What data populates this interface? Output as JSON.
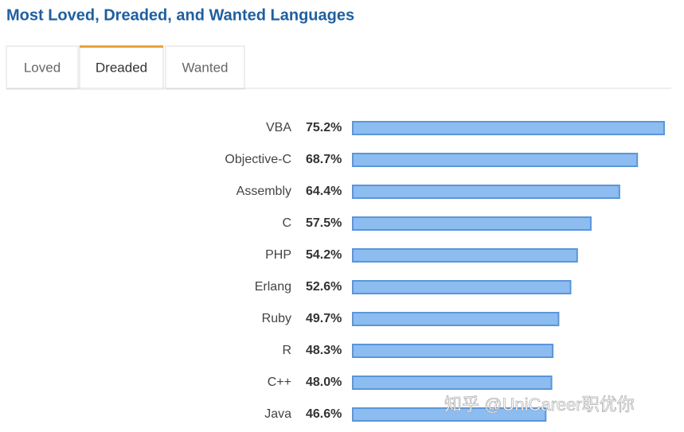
{
  "title": "Most Loved, Dreaded, and Wanted Languages",
  "tabs": [
    "Loved",
    "Dreaded",
    "Wanted"
  ],
  "active_tab": 1,
  "watermark": "知乎 @UniCareer职优你",
  "chart_data": {
    "type": "bar",
    "orientation": "horizontal",
    "categories": [
      "VBA",
      "Objective-C",
      "Assembly",
      "C",
      "PHP",
      "Erlang",
      "Ruby",
      "R",
      "C++",
      "Java"
    ],
    "values": [
      75.2,
      68.7,
      64.4,
      57.5,
      54.2,
      52.6,
      49.7,
      48.3,
      48.0,
      46.6
    ],
    "value_labels": [
      "75.2%",
      "68.7%",
      "64.4%",
      "57.5%",
      "54.2%",
      "52.6%",
      "49.7%",
      "48.3%",
      "48.0%",
      "46.6%"
    ],
    "color": "#8cbcf0"
  }
}
